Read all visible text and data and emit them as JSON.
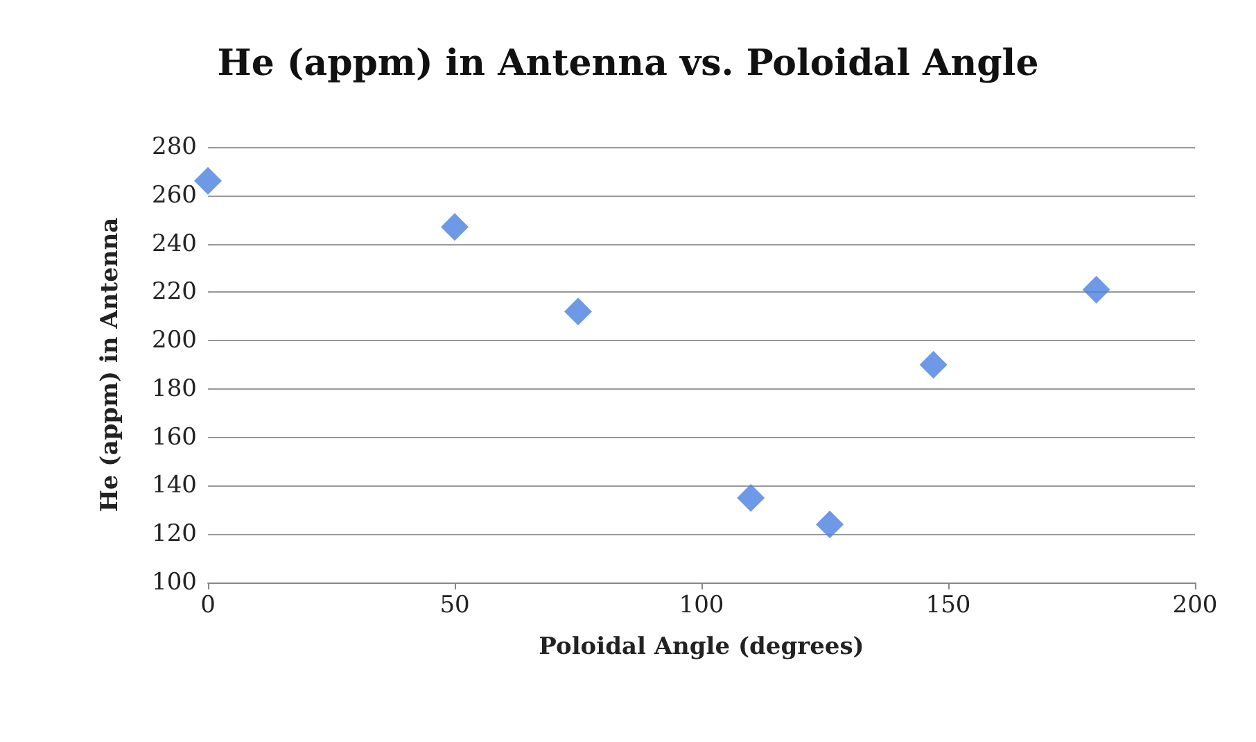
{
  "chart_data": {
    "type": "scatter",
    "title": "He (appm) in Antenna vs. Poloidal Angle",
    "xlabel": "Poloidal Angle (degrees)",
    "ylabel": "He (appm) in Antenna",
    "x": [
      0,
      50,
      75,
      110,
      126,
      147,
      180
    ],
    "series": [
      {
        "color": "#4a7fe0",
        "values": [
          266,
          247,
          212,
          135,
          124,
          190,
          221
        ]
      }
    ],
    "xlim": [
      0,
      200
    ],
    "xticks": [
      0,
      50,
      100,
      150,
      200
    ],
    "ylim": [
      100,
      280
    ],
    "yticks": [
      100,
      120,
      140,
      160,
      180,
      200,
      220,
      240,
      260,
      280
    ],
    "grid": "y",
    "marker": "diamond"
  }
}
